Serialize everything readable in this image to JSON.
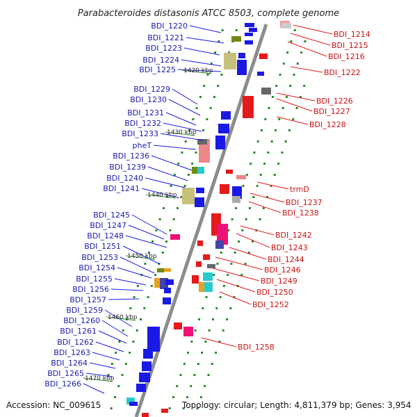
{
  "title": "Parabacteroides distasonis ATCC 8503, complete genome",
  "footer": {
    "accession": "Accession: NC_009615",
    "topology": "Topology: circular; Length: 4,811,379 bp; Genes: 3,954"
  },
  "kbp_marks": [
    "1420 kbp",
    "1430 kbp",
    "1440 kbp",
    "1450 kbp",
    "1460 kbp",
    "1470 kbp"
  ],
  "left_genes": [
    "BDI_1220",
    "BDI_1221",
    "BDI_1223",
    "BDI_1224",
    "BDI_1225",
    "BDI_1229",
    "BDI_1230",
    "BDI_1231",
    "BDI_1232",
    "BDI_1233",
    "pheT",
    "BDI_1236",
    "BDI_1239",
    "BDI_1240",
    "BDI_1241",
    "BDI_1245",
    "BDI_1247",
    "BDI_1248",
    "BDI_1251",
    "BDI_1253",
    "BDI_1254",
    "BDI_1255",
    "BDI_1256",
    "BDI_1257",
    "BDI_1259",
    "BDI_1260",
    "BDI_1261",
    "BDI_1262",
    "BDI_1263",
    "BDI_1264",
    "BDI_1265",
    "BDI_1266"
  ],
  "right_genes": [
    "BDI_1214",
    "BDI_1215",
    "BDI_1216",
    "BDI_1222",
    "BDI_1226",
    "BDI_1227",
    "BDI_1228",
    "trmD",
    "BDI_1237",
    "BDI_1238",
    "BDI_1242",
    "BDI_1243",
    "BDI_1244",
    "BDI_1246",
    "BDI_1249",
    "BDI_1250",
    "BDI_1252",
    "BDI_1258"
  ],
  "colors": {
    "forward_strand": "#1a1ae6",
    "reverse_strand": "#e61a1a",
    "left_label": "#1a1ab0",
    "right_label": "#cc1111",
    "backbone": "#8c8c8c",
    "tick": "#2a8a2a"
  }
}
